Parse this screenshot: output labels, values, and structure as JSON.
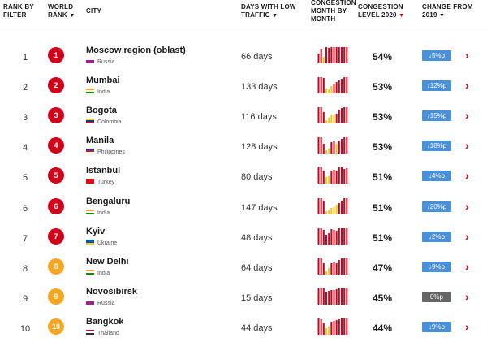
{
  "header": {
    "rank_by_filter": [
      "RANK BY",
      "FILTER"
    ],
    "world_rank": [
      "WORLD",
      "RANK"
    ],
    "city": "CITY",
    "days_low_traffic": [
      "DAYS WITH LOW",
      "TRAFFIC"
    ],
    "congestion_month": [
      "CONGESTION",
      "MONTH BY",
      "MONTH"
    ],
    "congestion_level": [
      "CONGESTION",
      "LEVEL 2020"
    ],
    "change": [
      "CHANGE FROM",
      "2019"
    ],
    "sort_glyph": "▼"
  },
  "colors": {
    "badge_red": "#d0021b",
    "badge_yellow": "#f5a623",
    "bar_red": "#d0021b",
    "bar_yellow": "#f5c518",
    "change_blue": "#4a90d9",
    "change_grey": "#666666"
  },
  "icons": {
    "chevron": "chevron-right-icon",
    "down_arrow": "↓"
  },
  "rows": [
    {
      "filter_rank": "1",
      "world_rank": "1",
      "badge": "red",
      "city": "Moscow region (oblast)",
      "country": "Russia",
      "flag": [
        "#ffffff",
        "#a0208e",
        "#a0208e"
      ],
      "days": "66 days",
      "level": "54%",
      "change": "↓5%p",
      "change_color": "blue",
      "months": [
        60,
        90,
        40,
        100,
        95,
        100,
        100,
        100,
        100,
        100,
        100,
        100
      ],
      "month_colors": [
        "r",
        "r",
        "y",
        "r",
        "r",
        "r",
        "r",
        "r",
        "r",
        "r",
        "r",
        "r"
      ]
    },
    {
      "filter_rank": "2",
      "world_rank": "2",
      "badge": "red",
      "city": "Mumbai",
      "country": "India",
      "flag": [
        "#ff9933",
        "#ffffff",
        "#138808"
      ],
      "days": "133 days",
      "level": "53%",
      "change": "↓12%p",
      "change_color": "blue",
      "months": [
        100,
        100,
        95,
        30,
        25,
        45,
        55,
        70,
        80,
        90,
        100,
        100
      ],
      "month_colors": [
        "r",
        "r",
        "r",
        "y",
        "y",
        "y",
        "r",
        "r",
        "r",
        "r",
        "r",
        "r"
      ]
    },
    {
      "filter_rank": "3",
      "world_rank": "3",
      "badge": "red",
      "city": "Bogota",
      "country": "Colombia",
      "flag": [
        "#fcd116",
        "#003893",
        "#ce1126"
      ],
      "days": "116 days",
      "level": "53%",
      "change": "↓15%p",
      "change_color": "blue",
      "months": [
        100,
        100,
        70,
        20,
        35,
        55,
        50,
        60,
        85,
        95,
        100,
        100
      ],
      "month_colors": [
        "r",
        "r",
        "r",
        "y",
        "y",
        "y",
        "y",
        "r",
        "r",
        "r",
        "r",
        "r"
      ]
    },
    {
      "filter_rank": "4",
      "world_rank": "4",
      "badge": "red",
      "city": "Manila",
      "country": "Philippines",
      "flag": [
        "#0038a8",
        "#ce1126",
        "#ffffff"
      ],
      "days": "128 days",
      "level": "53%",
      "change": "↓18%p",
      "change_color": "blue",
      "months": [
        100,
        100,
        60,
        20,
        30,
        70,
        75,
        60,
        80,
        90,
        100,
        100
      ],
      "month_colors": [
        "r",
        "r",
        "r",
        "y",
        "y",
        "r",
        "r",
        "y",
        "r",
        "r",
        "r",
        "r"
      ]
    },
    {
      "filter_rank": "5",
      "world_rank": "5",
      "badge": "red",
      "city": "Istanbul",
      "country": "Turkey",
      "flag": [
        "#e30a17",
        "#e30a17",
        "#e30a17"
      ],
      "days": "80 days",
      "level": "51%",
      "change": "↓4%p",
      "change_color": "blue",
      "months": [
        100,
        100,
        80,
        40,
        45,
        80,
        85,
        80,
        100,
        100,
        90,
        95
      ],
      "month_colors": [
        "r",
        "r",
        "r",
        "y",
        "y",
        "r",
        "r",
        "r",
        "r",
        "r",
        "r",
        "r"
      ]
    },
    {
      "filter_rank": "6",
      "world_rank": "6",
      "badge": "red",
      "city": "Bengaluru",
      "country": "India",
      "flag": [
        "#ff9933",
        "#ffffff",
        "#138808"
      ],
      "days": "147 days",
      "level": "51%",
      "change": "↓20%p",
      "change_color": "blue",
      "months": [
        100,
        100,
        85,
        20,
        25,
        40,
        45,
        60,
        70,
        85,
        100,
        100
      ],
      "month_colors": [
        "r",
        "r",
        "r",
        "y",
        "y",
        "y",
        "y",
        "y",
        "r",
        "r",
        "r",
        "r"
      ]
    },
    {
      "filter_rank": "7",
      "world_rank": "7",
      "badge": "red",
      "city": "Kyiv",
      "country": "Ukraine",
      "flag": [
        "#0057b7",
        "#0057b7",
        "#ffd700"
      ],
      "days": "48 days",
      "level": "51%",
      "change": "↓2%p",
      "change_color": "blue",
      "months": [
        100,
        100,
        90,
        60,
        70,
        95,
        90,
        85,
        100,
        100,
        100,
        100
      ],
      "month_colors": [
        "r",
        "r",
        "r",
        "r",
        "r",
        "r",
        "r",
        "r",
        "r",
        "r",
        "r",
        "r"
      ]
    },
    {
      "filter_rank": "8",
      "world_rank": "8",
      "badge": "yellow",
      "city": "New Delhi",
      "country": "India",
      "flag": [
        "#ff9933",
        "#ffffff",
        "#138808"
      ],
      "days": "64 days",
      "level": "47%",
      "change": "↓9%p",
      "change_color": "blue",
      "months": [
        100,
        100,
        70,
        20,
        40,
        70,
        75,
        70,
        90,
        100,
        100,
        100
      ],
      "month_colors": [
        "r",
        "r",
        "r",
        "y",
        "y",
        "r",
        "r",
        "r",
        "r",
        "r",
        "r",
        "r"
      ]
    },
    {
      "filter_rank": "9",
      "world_rank": "9",
      "badge": "yellow",
      "city": "Novosibirsk",
      "country": "Russia",
      "flag": [
        "#ffffff",
        "#a0208e",
        "#a0208e"
      ],
      "days": "15 days",
      "level": "45%",
      "change": "0%p",
      "change_color": "grey",
      "months": [
        100,
        100,
        100,
        80,
        85,
        90,
        90,
        95,
        100,
        100,
        100,
        100
      ],
      "month_colors": [
        "r",
        "r",
        "r",
        "r",
        "r",
        "r",
        "r",
        "r",
        "r",
        "r",
        "r",
        "r"
      ]
    },
    {
      "filter_rank": "10",
      "world_rank": "10",
      "badge": "yellow",
      "city": "Bangkok",
      "country": "Thailand",
      "flag": [
        "#a51931",
        "#ffffff",
        "#2d2a4a"
      ],
      "days": "44 days",
      "level": "44%",
      "change": "↓9%p",
      "change_color": "blue",
      "months": [
        100,
        95,
        70,
        40,
        50,
        80,
        85,
        90,
        95,
        100,
        100,
        100
      ],
      "month_colors": [
        "r",
        "r",
        "r",
        "y",
        "y",
        "r",
        "r",
        "r",
        "r",
        "r",
        "r",
        "r"
      ]
    }
  ]
}
